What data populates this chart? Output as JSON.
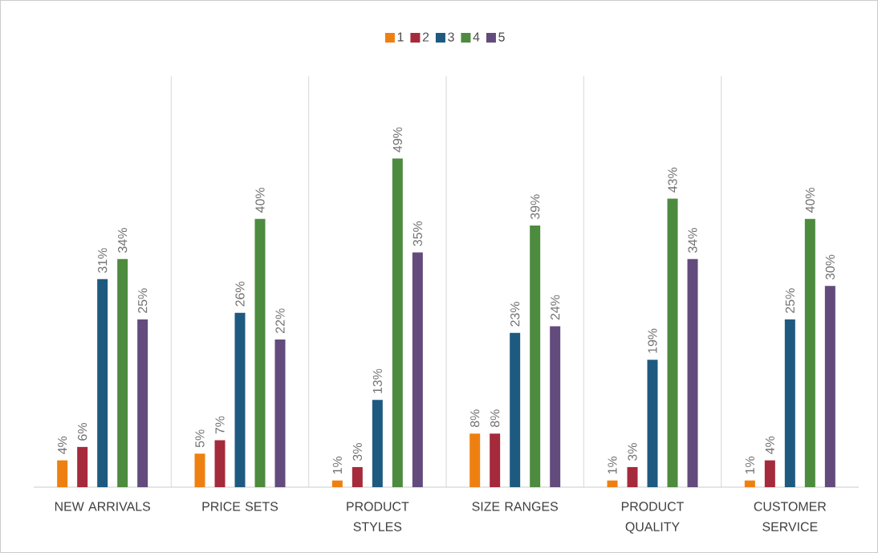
{
  "chart_data": {
    "type": "bar",
    "categories": [
      "NEW ARRIVALS",
      "PRICE SETS",
      "PRODUCT STYLES",
      "SIZE RANGES",
      "PRODUCT QUALITY",
      "CUSTOMER SERVICE"
    ],
    "series": [
      {
        "name": "1",
        "color": "#ee8012",
        "values": [
          4,
          5,
          1,
          8,
          1,
          1
        ],
        "value_labels": [
          "4%",
          "5%",
          "1%",
          "8%",
          "1%",
          "1%"
        ]
      },
      {
        "name": "2",
        "color": "#a52a3c",
        "values": [
          6,
          7,
          3,
          8,
          3,
          4
        ],
        "value_labels": [
          "6%",
          "7%",
          "3%",
          "8%",
          "3%",
          "4%"
        ]
      },
      {
        "name": "3",
        "color": "#1e5a80",
        "values": [
          31,
          26,
          13,
          23,
          19,
          25
        ],
        "value_labels": [
          "31%",
          "26%",
          "13%",
          "23%",
          "19%",
          "25%"
        ]
      },
      {
        "name": "4",
        "color": "#4d8b3f",
        "values": [
          34,
          40,
          49,
          39,
          43,
          40
        ],
        "value_labels": [
          "34%",
          "40%",
          "49%",
          "39%",
          "43%",
          "40%"
        ]
      },
      {
        "name": "5",
        "color": "#634b7d",
        "values": [
          25,
          22,
          35,
          24,
          34,
          30
        ],
        "value_labels": [
          "25%",
          "22%",
          "35%",
          "24%",
          "34%",
          "30%"
        ]
      }
    ],
    "grid": "x",
    "legend": "top"
  }
}
